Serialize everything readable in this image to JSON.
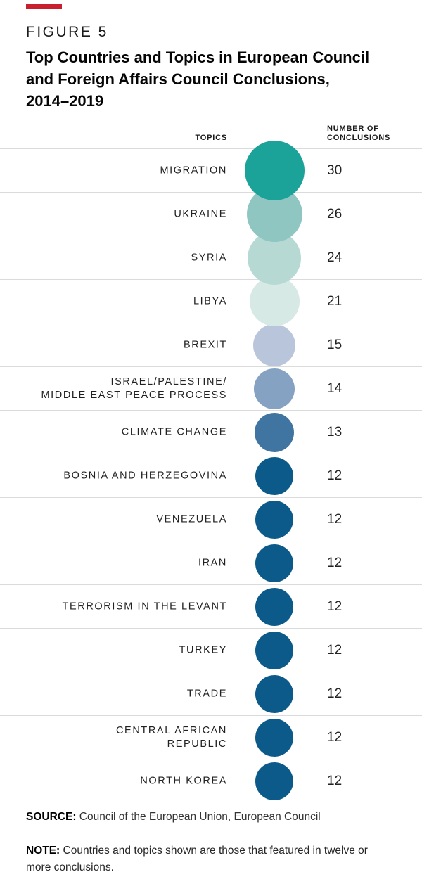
{
  "page": {
    "background": "#ffffff",
    "accent_bar_color": "#c92030"
  },
  "header": {
    "figure_label": "FIGURE 5",
    "title_lines": [
      "Top Countries and Topics in European Council",
      "and Foreign Affairs Council Conclusions,",
      "2014–2019"
    ]
  },
  "table": {
    "topics_header": "TOPICS",
    "count_header_line1": "NUMBER OF",
    "count_header_line2": "CONCLUSIONS",
    "divider_color": "#dbdbdb"
  },
  "chart_data": {
    "type": "bubble",
    "title": "Top Countries and Topics in European Council and Foreign Affairs Council Conclusions, 2014–2019",
    "xlabel": "Topics",
    "ylabel": "Number of Conclusions",
    "legend": "none",
    "grid": "horizontal row dividers",
    "categories": [
      "Migration",
      "Ukraine",
      "Syria",
      "Libya",
      "Brexit",
      "Israel/Palestine/Middle East Peace Process",
      "Climate Change",
      "Bosnia and Herzegovina",
      "Venezuela",
      "Iran",
      "Terrorism in the Levant",
      "Turkey",
      "Trade",
      "Central African Republic",
      "North Korea"
    ],
    "display_lines": [
      [
        "MIGRATION"
      ],
      [
        "UKRAINE"
      ],
      [
        "SYRIA"
      ],
      [
        "LIBYA"
      ],
      [
        "BREXIT"
      ],
      [
        "ISRAEL/PALESTINE/",
        "MIDDLE EAST PEACE PROCESS"
      ],
      [
        "CLIMATE CHANGE"
      ],
      [
        "BOSNIA AND HERZEGOVINA"
      ],
      [
        "VENEZUELA"
      ],
      [
        "IRAN"
      ],
      [
        "TERRORISM IN THE LEVANT"
      ],
      [
        "TURKEY"
      ],
      [
        "TRADE"
      ],
      [
        "CENTRAL AFRICAN",
        "REPUBLIC"
      ],
      [
        "NORTH KOREA"
      ]
    ],
    "values": [
      30,
      26,
      24,
      21,
      15,
      14,
      13,
      12,
      12,
      12,
      12,
      12,
      12,
      12,
      12
    ],
    "bubble_colors": [
      "#1ba299",
      "#8fc6c1",
      "#b7d9d4",
      "#d7e9e5",
      "#b9c5da",
      "#85a2c2",
      "#4074a1",
      "#0c5a89",
      "#0c5a89",
      "#0c5a89",
      "#0c5a89",
      "#0c5a89",
      "#0c5a89",
      "#0c5a89",
      "#0c5a89"
    ],
    "bubble_size_rule": "diameter proportional to sqrt(value), max 85px at value 30",
    "value_range": [
      12,
      30
    ]
  },
  "footer": {
    "source_label": "SOURCE:",
    "source_text": "Council of the European Union, European Council",
    "note_label": "NOTE:",
    "note_text": "Countries and topics shown are those that featured in twelve or more conclusions."
  }
}
